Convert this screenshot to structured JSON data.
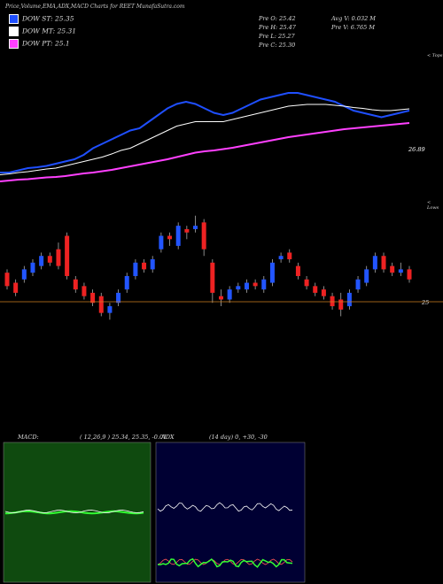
{
  "header": {
    "title": "Price,Volume,EMA,ADX,MACD Charts for REET MunafaSutra.com"
  },
  "legend": [
    {
      "label": "DOW ST: 25.35",
      "color": "#1f4fff"
    },
    {
      "label": "DOW MT: 25.31",
      "color": "#ffffff"
    },
    {
      "label": "DOW PT: 25.1",
      "color": "#ff40ff"
    }
  ],
  "stats": {
    "open": "Pre  O: 25.42",
    "high": "Pre  H: 25.47",
    "low": "Pre  L: 25.27",
    "close": "Pre  C: 25.30",
    "avgvol": "Avg V: 0.032  M",
    "prevvol": "Pre  V: 6.765 M"
  },
  "labels": {
    "top_right": "< Tops",
    "mid_right": "< Lows",
    "ema_value": "26.89",
    "price_level": "25",
    "macd_label": "MACD:",
    "macd_values": "( 12,26,9 ) 25.34,  25.35,  -0.01",
    "adx_label": "ADX",
    "adx_values": "(14  day) 0,  +30,  -30"
  },
  "colors": {
    "up": "#2255ff",
    "down": "#ee2222",
    "ema_fast": "#1f4fff",
    "ema_mid": "#ffffff",
    "ema_slow": "#ff40ff",
    "macd_bg": "#0f4a0f",
    "adx_bg": "#000033"
  },
  "chart_data": [
    {
      "type": "line",
      "title": "Price with EMA",
      "series": [
        {
          "name": "DOW ST",
          "values": [
            25.3,
            25.3,
            25.35,
            25.4,
            25.42,
            25.45,
            25.5,
            25.55,
            25.6,
            25.7,
            25.85,
            25.95,
            26.05,
            26.15,
            26.25,
            26.3,
            26.45,
            26.6,
            26.75,
            26.85,
            26.9,
            26.85,
            26.75,
            26.65,
            26.6,
            26.65,
            26.75,
            26.85,
            26.95,
            27.0,
            27.05,
            27.1,
            27.1,
            27.05,
            27.0,
            26.95,
            26.9,
            26.8,
            26.7,
            26.65,
            26.6,
            26.55,
            26.6,
            26.65,
            26.7
          ]
        },
        {
          "name": "DOW MT",
          "values": [
            25.25,
            25.27,
            25.3,
            25.32,
            25.35,
            25.38,
            25.4,
            25.45,
            25.5,
            25.55,
            25.6,
            25.65,
            25.72,
            25.8,
            25.85,
            25.95,
            26.05,
            26.15,
            26.25,
            26.35,
            26.4,
            26.45,
            26.45,
            26.45,
            26.45,
            26.5,
            26.55,
            26.6,
            26.65,
            26.7,
            26.75,
            26.8,
            26.82,
            26.84,
            26.84,
            26.84,
            26.82,
            26.8,
            26.77,
            26.75,
            26.72,
            26.7,
            26.7,
            26.72,
            26.74
          ]
        },
        {
          "name": "DOW PT",
          "values": [
            25.1,
            25.12,
            25.14,
            25.15,
            25.17,
            25.19,
            25.2,
            25.22,
            25.25,
            25.28,
            25.3,
            25.33,
            25.36,
            25.4,
            25.44,
            25.48,
            25.52,
            25.56,
            25.6,
            25.65,
            25.7,
            25.75,
            25.78,
            25.8,
            25.83,
            25.86,
            25.9,
            25.94,
            25.98,
            26.02,
            26.06,
            26.1,
            26.13,
            26.16,
            26.19,
            26.22,
            26.25,
            26.28,
            26.3,
            26.32,
            26.34,
            26.36,
            26.38,
            26.4,
            26.42
          ]
        }
      ]
    },
    {
      "type": "bar",
      "title": "Candles",
      "candles": [
        {
          "o": 25.5,
          "c": 25.1,
          "h": 25.6,
          "l": 25.0
        },
        {
          "o": 25.2,
          "c": 24.9,
          "h": 25.3,
          "l": 24.8
        },
        {
          "o": 25.3,
          "c": 25.6,
          "h": 25.7,
          "l": 25.2
        },
        {
          "o": 25.5,
          "c": 25.8,
          "h": 25.9,
          "l": 25.4
        },
        {
          "o": 25.7,
          "c": 26.0,
          "h": 26.1,
          "l": 25.6
        },
        {
          "o": 26.0,
          "c": 25.8,
          "h": 26.1,
          "l": 25.7
        },
        {
          "o": 26.2,
          "c": 25.7,
          "h": 26.4,
          "l": 25.6
        },
        {
          "o": 26.6,
          "c": 25.4,
          "h": 26.7,
          "l": 25.3
        },
        {
          "o": 25.3,
          "c": 25.0,
          "h": 25.4,
          "l": 24.9
        },
        {
          "o": 25.1,
          "c": 24.8,
          "h": 25.2,
          "l": 24.7
        },
        {
          "o": 24.9,
          "c": 24.6,
          "h": 25.0,
          "l": 24.5
        },
        {
          "o": 24.8,
          "c": 24.3,
          "h": 24.9,
          "l": 24.2
        },
        {
          "o": 24.3,
          "c": 24.5,
          "h": 24.6,
          "l": 24.1
        },
        {
          "o": 24.6,
          "c": 24.9,
          "h": 25.0,
          "l": 24.5
        },
        {
          "o": 25.0,
          "c": 25.4,
          "h": 25.5,
          "l": 24.9
        },
        {
          "o": 25.4,
          "c": 25.8,
          "h": 25.9,
          "l": 25.3
        },
        {
          "o": 25.8,
          "c": 25.6,
          "h": 25.9,
          "l": 25.5
        },
        {
          "o": 25.6,
          "c": 25.9,
          "h": 26.0,
          "l": 25.5
        },
        {
          "o": 26.2,
          "c": 26.6,
          "h": 26.7,
          "l": 26.1
        },
        {
          "o": 26.6,
          "c": 26.5,
          "h": 26.7,
          "l": 26.3
        },
        {
          "o": 26.3,
          "c": 26.9,
          "h": 27.0,
          "l": 26.2
        },
        {
          "o": 26.8,
          "c": 26.7,
          "h": 26.9,
          "l": 26.5
        },
        {
          "o": 26.8,
          "c": 26.9,
          "h": 27.2,
          "l": 26.7
        },
        {
          "o": 27.0,
          "c": 26.2,
          "h": 27.1,
          "l": 26.0
        },
        {
          "o": 25.8,
          "c": 24.9,
          "h": 25.9,
          "l": 24.6
        },
        {
          "o": 24.8,
          "c": 24.7,
          "h": 25.0,
          "l": 24.5
        },
        {
          "o": 24.7,
          "c": 25.0,
          "h": 25.1,
          "l": 24.6
        },
        {
          "o": 25.0,
          "c": 25.1,
          "h": 25.2,
          "l": 24.9
        },
        {
          "o": 25.0,
          "c": 25.2,
          "h": 25.3,
          "l": 24.9
        },
        {
          "o": 25.2,
          "c": 25.1,
          "h": 25.3,
          "l": 25.0
        },
        {
          "o": 25.0,
          "c": 25.3,
          "h": 25.4,
          "l": 24.9
        },
        {
          "o": 25.2,
          "c": 25.8,
          "h": 25.9,
          "l": 25.1
        },
        {
          "o": 25.9,
          "c": 26.0,
          "h": 26.1,
          "l": 25.8
        },
        {
          "o": 26.1,
          "c": 25.9,
          "h": 26.2,
          "l": 25.8
        },
        {
          "o": 25.7,
          "c": 25.4,
          "h": 25.8,
          "l": 25.3
        },
        {
          "o": 25.3,
          "c": 25.1,
          "h": 25.4,
          "l": 25.0
        },
        {
          "o": 25.1,
          "c": 24.9,
          "h": 25.2,
          "l": 24.8
        },
        {
          "o": 25.0,
          "c": 24.8,
          "h": 25.1,
          "l": 24.7
        },
        {
          "o": 24.8,
          "c": 24.5,
          "h": 24.9,
          "l": 24.4
        },
        {
          "o": 24.7,
          "c": 24.4,
          "h": 24.9,
          "l": 24.2
        },
        {
          "o": 24.5,
          "c": 24.9,
          "h": 25.0,
          "l": 24.4
        },
        {
          "o": 25.0,
          "c": 25.3,
          "h": 25.4,
          "l": 24.9
        },
        {
          "o": 25.2,
          "c": 25.6,
          "h": 25.7,
          "l": 25.1
        },
        {
          "o": 25.6,
          "c": 26.0,
          "h": 26.1,
          "l": 25.5
        },
        {
          "o": 26.0,
          "c": 25.6,
          "h": 26.1,
          "l": 25.5
        },
        {
          "o": 25.7,
          "c": 25.5,
          "h": 25.8,
          "l": 25.4
        },
        {
          "o": 25.5,
          "c": 25.6,
          "h": 25.8,
          "l": 25.4
        },
        {
          "o": 25.6,
          "c": 25.3,
          "h": 25.7,
          "l": 25.2
        }
      ],
      "reference_level": 25
    }
  ]
}
